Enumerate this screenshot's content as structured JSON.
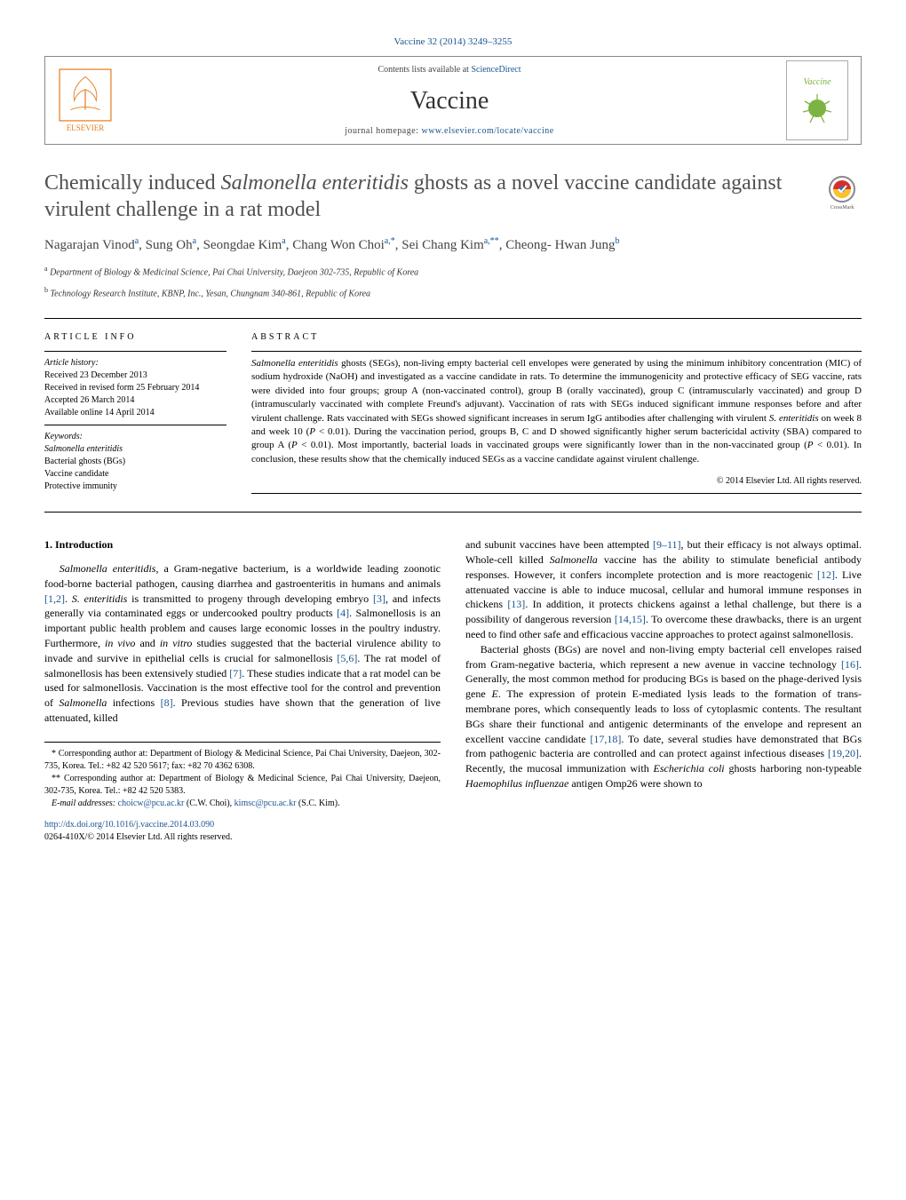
{
  "header": {
    "citation": "Vaccine 32 (2014) 3249–3255",
    "contents_prefix": "Contents lists available at ",
    "contents_link": "ScienceDirect",
    "journal_name": "Vaccine",
    "homepage_prefix": "journal homepage: ",
    "homepage_url": "www.elsevier.com/locate/vaccine",
    "publisher": "ELSEVIER",
    "cover_label": "Vaccine"
  },
  "title": {
    "html": "Chemically induced <em>Salmonella enteritidis</em> ghosts as a novel vaccine candidate against virulent challenge in a rat model"
  },
  "authors": [
    {
      "name": "Nagarajan Vinod",
      "sup": "a"
    },
    {
      "name": "Sung Oh",
      "sup": "a"
    },
    {
      "name": "Seongdae Kim",
      "sup": "a"
    },
    {
      "name": "Chang Won Choi",
      "sup": "a,*"
    },
    {
      "name": "Sei Chang Kim",
      "sup": "a,**"
    },
    {
      "name": "Cheong- Hwan Jung",
      "sup": "b"
    }
  ],
  "affiliations": [
    {
      "sup": "a",
      "text": "Department of Biology & Medicinal Science, Pai Chai University, Daejeon 302-735, Republic of Korea"
    },
    {
      "sup": "b",
      "text": "Technology Research Institute, KBNP, Inc., Yesan, Chungnam 340-861, Republic of Korea"
    }
  ],
  "article_info": {
    "heading": "article info",
    "history_label": "Article history:",
    "history": [
      "Received 23 December 2013",
      "Received in revised form 25 February 2014",
      "Accepted 26 March 2014",
      "Available online 14 April 2014"
    ],
    "keywords_label": "Keywords:",
    "keywords": [
      "Salmonella enteritidis",
      "Bacterial ghosts (BGs)",
      "Vaccine candidate",
      "Protective immunity"
    ]
  },
  "abstract": {
    "heading": "abstract",
    "text_html": "<em>Salmonella enteritidis</em> ghosts (SEGs), non-living empty bacterial cell envelopes were generated by using the minimum inhibitory concentration (MIC) of sodium hydroxide (NaOH) and investigated as a vaccine candidate in rats. To determine the immunogenicity and protective efficacy of SEG vaccine, rats were divided into four groups; group A (non-vaccinated control), group B (orally vaccinated), group C (intramuscularly vaccinated) and group D (intramuscularly vaccinated with complete Freund's adjuvant). Vaccination of rats with SEGs induced significant immune responses before and after virulent challenge. Rats vaccinated with SEGs showed significant increases in serum IgG antibodies after challenging with virulent <em>S. enteritidis</em> on week 8 and week 10 (<em>P</em> < 0.01). During the vaccination period, groups B, C and D showed significantly higher serum bactericidal activity (SBA) compared to group A (<em>P</em> < 0.01). Most importantly, bacterial loads in vaccinated groups were significantly lower than in the non-vaccinated group (<em>P</em> < 0.01). In conclusion, these results show that the chemically induced SEGs as a vaccine candidate against virulent challenge.",
    "copyright": "© 2014 Elsevier Ltd. All rights reserved."
  },
  "body": {
    "section_heading": "1.  Introduction",
    "left_html": "<em>Salmonella enteritidis</em>, a Gram-negative bacterium, is a worldwide leading zoonotic food-borne bacterial pathogen, causing diarrhea and gastroenteritis in humans and animals <span class=\"ref\">[1,2]</span>. <em>S. enteritidis</em> is transmitted to progeny through developing embryo <span class=\"ref\">[3]</span>, and infects generally via contaminated eggs or undercooked poultry products <span class=\"ref\">[4]</span>. Salmonellosis is an important public health problem and causes large economic losses in the poultry industry. Furthermore, <em>in vivo</em> and <em>in vitro</em> studies suggested that the bacterial virulence ability to invade and survive in epithelial cells is crucial for salmonellosis <span class=\"ref\">[5,6]</span>. The rat model of salmonellosis has been extensively studied <span class=\"ref\">[7]</span>. These studies indicate that a rat model can be used for salmonellosis. Vaccination is the most effective tool for the control and prevention of <em>Salmonella</em> infections <span class=\"ref\">[8]</span>. Previous studies have shown that the generation of live attenuated, killed",
    "right_top_html": "and subunit vaccines have been attempted <span class=\"ref\">[9–11]</span>, but their efficacy is not always optimal. Whole-cell killed <em>Salmonella</em> vaccine has the ability to stimulate beneficial antibody responses. However, it confers incomplete protection and is more reactogenic <span class=\"ref\">[12]</span>. Live attenuated vaccine is able to induce mucosal, cellular and humoral immune responses in chickens <span class=\"ref\">[13]</span>. In addition, it protects chickens against a lethal challenge, but there is a possibility of dangerous reversion <span class=\"ref\">[14,15]</span>. To overcome these drawbacks, there is an urgent need to find other safe and efficacious vaccine approaches to protect against salmonellosis.",
    "right_bottom_html": "Bacterial ghosts (BGs) are novel and non-living empty bacterial cell envelopes raised from Gram-negative bacteria, which represent a new avenue in vaccine technology <span class=\"ref\">[16]</span>. Generally, the most common method for producing BGs is based on the phage-derived lysis gene <em>E</em>. The expression of protein E-mediated lysis leads to the formation of trans-membrane pores, which consequently leads to loss of cytoplasmic contents. The resultant BGs share their functional and antigenic determinants of the envelope and represent an excellent vaccine candidate <span class=\"ref\">[17,18]</span>. To date, several studies have demonstrated that BGs from pathogenic bacteria are controlled and can protect against infectious diseases <span class=\"ref\">[19,20]</span>. Recently, the mucosal immunization with <em>Escherichia coli</em> ghosts harboring non-typeable <em>Haemophilus influenzae</em> antigen Omp26 were shown to"
  },
  "footnotes": {
    "star": "* Corresponding author at: Department of Biology & Medicinal Science, Pai Chai University, Daejeon, 302-735, Korea. Tel.: +82 42 520 5617; fax: +82 70 4362 6308.",
    "dstar": "** Corresponding author at: Department of Biology & Medicinal Science, Pai Chai University, Daejeon, 302-735, Korea. Tel.: +82 42 520 5383.",
    "emails_label": "E-mail addresses:",
    "email1": "choicw@pcu.ac.kr",
    "email1_who": " (C.W. Choi), ",
    "email2": "kimsc@pcu.ac.kr",
    "email2_who": " (S.C. Kim)."
  },
  "doi": {
    "url": "http://dx.doi.org/10.1016/j.vaccine.2014.03.090",
    "issn": "0264-410X/© 2014 Elsevier Ltd. All rights reserved."
  },
  "colors": {
    "link": "#1a5490",
    "text": "#000000",
    "title_gray": "#505050",
    "elsevier_orange": "#e67e22",
    "cover_green": "#7cb342"
  }
}
